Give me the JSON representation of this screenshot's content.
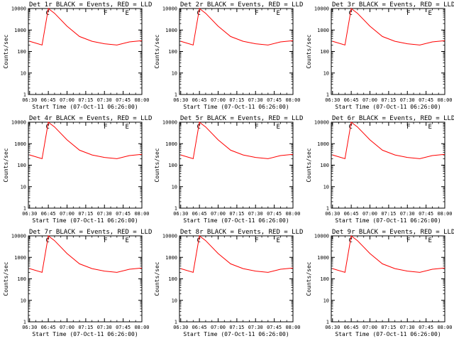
{
  "figure": {
    "background": "#ffffff",
    "events_color": "#000000",
    "lld_color": "#ff0000"
  },
  "chart_data": [
    {
      "type": "line",
      "detector": "1r",
      "title": "Det 1r BLACK = Events, RED = LLD",
      "xlabel": "Start Time (07-Oct-11 06:26:00)",
      "ylabel": "Counts/sec",
      "xticks": [
        "06:30",
        "06:45",
        "07:00",
        "07:15",
        "07:30",
        "07:45",
        "08:00"
      ],
      "yticks": [
        "1",
        "10",
        "100",
        "1000",
        "10000"
      ],
      "xlim": [
        "06:29",
        "08:00"
      ],
      "ylim": [
        1,
        10000
      ],
      "scale_y": "log",
      "markers": [
        "C",
        "F",
        "E"
      ],
      "series": [
        {
          "name": "Events",
          "color": "#000000",
          "x": [],
          "y": []
        },
        {
          "name": "LLD",
          "color": "#ff0000",
          "x": [
            "06:30",
            "06:40",
            "06:45",
            "06:50",
            "07:00",
            "07:10",
            "07:20",
            "07:30",
            "07:40",
            "07:50",
            "08:00"
          ],
          "y": [
            300,
            200,
            10000,
            6000,
            1500,
            500,
            300,
            230,
            200,
            280,
            320
          ]
        }
      ]
    },
    {
      "type": "line",
      "detector": "2r",
      "title": "Det 2r BLACK = Events, RED = LLD",
      "xlabel": "Start Time (07-Oct-11 06:26:00)",
      "ylabel": "Counts/sec",
      "xticks": [
        "06:30",
        "06:45",
        "07:00",
        "07:15",
        "07:30",
        "07:45",
        "08:00"
      ],
      "yticks": [
        "1",
        "10",
        "100",
        "1000",
        "10000"
      ],
      "xlim": [
        "06:29",
        "08:00"
      ],
      "ylim": [
        1,
        10000
      ],
      "scale_y": "log",
      "markers": [
        "C",
        "F",
        "E"
      ],
      "series": [
        {
          "name": "Events",
          "color": "#000000",
          "x": [],
          "y": []
        },
        {
          "name": "LLD",
          "color": "#ff0000",
          "x": [
            "06:30",
            "06:40",
            "06:45",
            "06:50",
            "07:00",
            "07:10",
            "07:20",
            "07:30",
            "07:40",
            "07:50",
            "08:00"
          ],
          "y": [
            300,
            200,
            10000,
            6000,
            1500,
            500,
            300,
            230,
            200,
            280,
            320
          ]
        }
      ]
    },
    {
      "type": "line",
      "detector": "3r",
      "title": "Det 3r BLACK = Events, RED = LLD",
      "xlabel": "Start Time (07-Oct-11 06:26:00)",
      "ylabel": "Counts/sec",
      "xticks": [
        "06:30",
        "06:45",
        "07:00",
        "07:15",
        "07:30",
        "07:45",
        "08:00"
      ],
      "yticks": [
        "1",
        "10",
        "100",
        "1000",
        "10000"
      ],
      "xlim": [
        "06:29",
        "08:00"
      ],
      "ylim": [
        1,
        10000
      ],
      "scale_y": "log",
      "markers": [
        "C",
        "F",
        "E"
      ],
      "series": [
        {
          "name": "Events",
          "color": "#000000",
          "x": [],
          "y": []
        },
        {
          "name": "LLD",
          "color": "#ff0000",
          "x": [
            "06:30",
            "06:40",
            "06:45",
            "06:50",
            "07:00",
            "07:10",
            "07:20",
            "07:30",
            "07:40",
            "07:50",
            "08:00"
          ],
          "y": [
            300,
            200,
            10000,
            6000,
            1500,
            500,
            300,
            230,
            200,
            280,
            320
          ]
        }
      ]
    },
    {
      "type": "line",
      "detector": "4r",
      "title": "Det 4r BLACK = Events, RED = LLD",
      "xlabel": "Start Time (07-Oct-11 06:26:00)",
      "ylabel": "Counts/sec",
      "xticks": [
        "06:30",
        "06:45",
        "07:00",
        "07:15",
        "07:30",
        "07:45",
        "08:00"
      ],
      "yticks": [
        "1",
        "10",
        "100",
        "1000",
        "10000"
      ],
      "xlim": [
        "06:29",
        "08:00"
      ],
      "ylim": [
        1,
        10000
      ],
      "scale_y": "log",
      "markers": [
        "C",
        "F",
        "E"
      ],
      "series": [
        {
          "name": "Events",
          "color": "#000000",
          "x": [],
          "y": []
        },
        {
          "name": "LLD",
          "color": "#ff0000",
          "x": [
            "06:30",
            "06:40",
            "06:45",
            "06:50",
            "07:00",
            "07:10",
            "07:20",
            "07:30",
            "07:40",
            "07:50",
            "08:00"
          ],
          "y": [
            300,
            200,
            10000,
            6000,
            1500,
            500,
            300,
            230,
            200,
            280,
            320
          ]
        }
      ]
    },
    {
      "type": "line",
      "detector": "5r",
      "title": "Det 5r BLACK = Events, RED = LLD",
      "xlabel": "Start Time (07-Oct-11 06:26:00)",
      "ylabel": "Counts/sec",
      "xticks": [
        "06:30",
        "06:45",
        "07:00",
        "07:15",
        "07:30",
        "07:45",
        "08:00"
      ],
      "yticks": [
        "1",
        "10",
        "100",
        "1000",
        "10000"
      ],
      "xlim": [
        "06:29",
        "08:00"
      ],
      "ylim": [
        1,
        10000
      ],
      "scale_y": "log",
      "markers": [
        "C",
        "F",
        "E"
      ],
      "series": [
        {
          "name": "Events",
          "color": "#000000",
          "x": [],
          "y": []
        },
        {
          "name": "LLD",
          "color": "#ff0000",
          "x": [
            "06:30",
            "06:40",
            "06:45",
            "06:50",
            "07:00",
            "07:10",
            "07:20",
            "07:30",
            "07:40",
            "07:50",
            "08:00"
          ],
          "y": [
            300,
            200,
            10000,
            6000,
            1500,
            500,
            300,
            230,
            200,
            280,
            320
          ]
        }
      ]
    },
    {
      "type": "line",
      "detector": "6r",
      "title": "Det 6r BLACK = Events, RED = LLD",
      "xlabel": "Start Time (07-Oct-11 06:26:00)",
      "ylabel": "Counts/sec",
      "xticks": [
        "06:30",
        "06:45",
        "07:00",
        "07:15",
        "07:30",
        "07:45",
        "08:00"
      ],
      "yticks": [
        "1",
        "10",
        "100",
        "1000",
        "10000"
      ],
      "xlim": [
        "06:29",
        "08:00"
      ],
      "ylim": [
        1,
        10000
      ],
      "scale_y": "log",
      "markers": [
        "C",
        "F",
        "E"
      ],
      "series": [
        {
          "name": "Events",
          "color": "#000000",
          "x": [],
          "y": []
        },
        {
          "name": "LLD",
          "color": "#ff0000",
          "x": [
            "06:30",
            "06:40",
            "06:45",
            "06:50",
            "07:00",
            "07:10",
            "07:20",
            "07:30",
            "07:40",
            "07:50",
            "08:00"
          ],
          "y": [
            300,
            200,
            10000,
            6000,
            1500,
            500,
            300,
            230,
            200,
            280,
            320
          ]
        }
      ]
    },
    {
      "type": "line",
      "detector": "7r",
      "title": "Det 7r BLACK = Events, RED = LLD",
      "xlabel": "Start Time (07-Oct-11 06:26:00)",
      "ylabel": "Counts/sec",
      "xticks": [
        "06:30",
        "06:45",
        "07:00",
        "07:15",
        "07:30",
        "07:45",
        "08:00"
      ],
      "yticks": [
        "1",
        "10",
        "100",
        "1000",
        "10000"
      ],
      "xlim": [
        "06:29",
        "08:00"
      ],
      "ylim": [
        1,
        10000
      ],
      "scale_y": "log",
      "markers": [
        "C",
        "F",
        "E"
      ],
      "series": [
        {
          "name": "Events",
          "color": "#000000",
          "x": [],
          "y": []
        },
        {
          "name": "LLD",
          "color": "#ff0000",
          "x": [
            "06:30",
            "06:40",
            "06:45",
            "06:50",
            "07:00",
            "07:10",
            "07:20",
            "07:30",
            "07:40",
            "07:50",
            "08:00"
          ],
          "y": [
            300,
            200,
            10000,
            6000,
            1500,
            500,
            300,
            230,
            200,
            280,
            320
          ]
        }
      ]
    },
    {
      "type": "line",
      "detector": "8r",
      "title": "Det 8r BLACK = Events, RED = LLD",
      "xlabel": "Start Time (07-Oct-11 06:26:00)",
      "ylabel": "Counts/sec",
      "xticks": [
        "06:30",
        "06:45",
        "07:00",
        "07:15",
        "07:30",
        "07:45",
        "08:00"
      ],
      "yticks": [
        "1",
        "10",
        "100",
        "1000",
        "10000"
      ],
      "xlim": [
        "06:29",
        "08:00"
      ],
      "ylim": [
        1,
        10000
      ],
      "scale_y": "log",
      "markers": [
        "C",
        "F",
        "E"
      ],
      "series": [
        {
          "name": "Events",
          "color": "#000000",
          "x": [],
          "y": []
        },
        {
          "name": "LLD",
          "color": "#ff0000",
          "x": [
            "06:30",
            "06:40",
            "06:45",
            "06:50",
            "07:00",
            "07:10",
            "07:20",
            "07:30",
            "07:40",
            "07:50",
            "08:00"
          ],
          "y": [
            300,
            200,
            10000,
            6000,
            1500,
            500,
            300,
            230,
            200,
            280,
            320
          ]
        }
      ]
    },
    {
      "type": "line",
      "detector": "9r",
      "title": "Det 9r BLACK = Events, RED = LLD",
      "xlabel": "Start Time (07-Oct-11 06:26:00)",
      "ylabel": "Counts/sec",
      "xticks": [
        "06:30",
        "06:45",
        "07:00",
        "07:15",
        "07:30",
        "07:45",
        "08:00"
      ],
      "yticks": [
        "1",
        "10",
        "100",
        "1000",
        "10000"
      ],
      "xlim": [
        "06:29",
        "08:00"
      ],
      "ylim": [
        1,
        10000
      ],
      "scale_y": "log",
      "markers": [
        "C",
        "F",
        "E"
      ],
      "series": [
        {
          "name": "Events",
          "color": "#000000",
          "x": [],
          "y": []
        },
        {
          "name": "LLD",
          "color": "#ff0000",
          "x": [
            "06:30",
            "06:40",
            "06:45",
            "06:50",
            "07:00",
            "07:10",
            "07:20",
            "07:30",
            "07:40",
            "07:50",
            "08:00"
          ],
          "y": [
            300,
            200,
            10000,
            6000,
            1500,
            500,
            300,
            230,
            200,
            280,
            320
          ]
        }
      ]
    }
  ]
}
